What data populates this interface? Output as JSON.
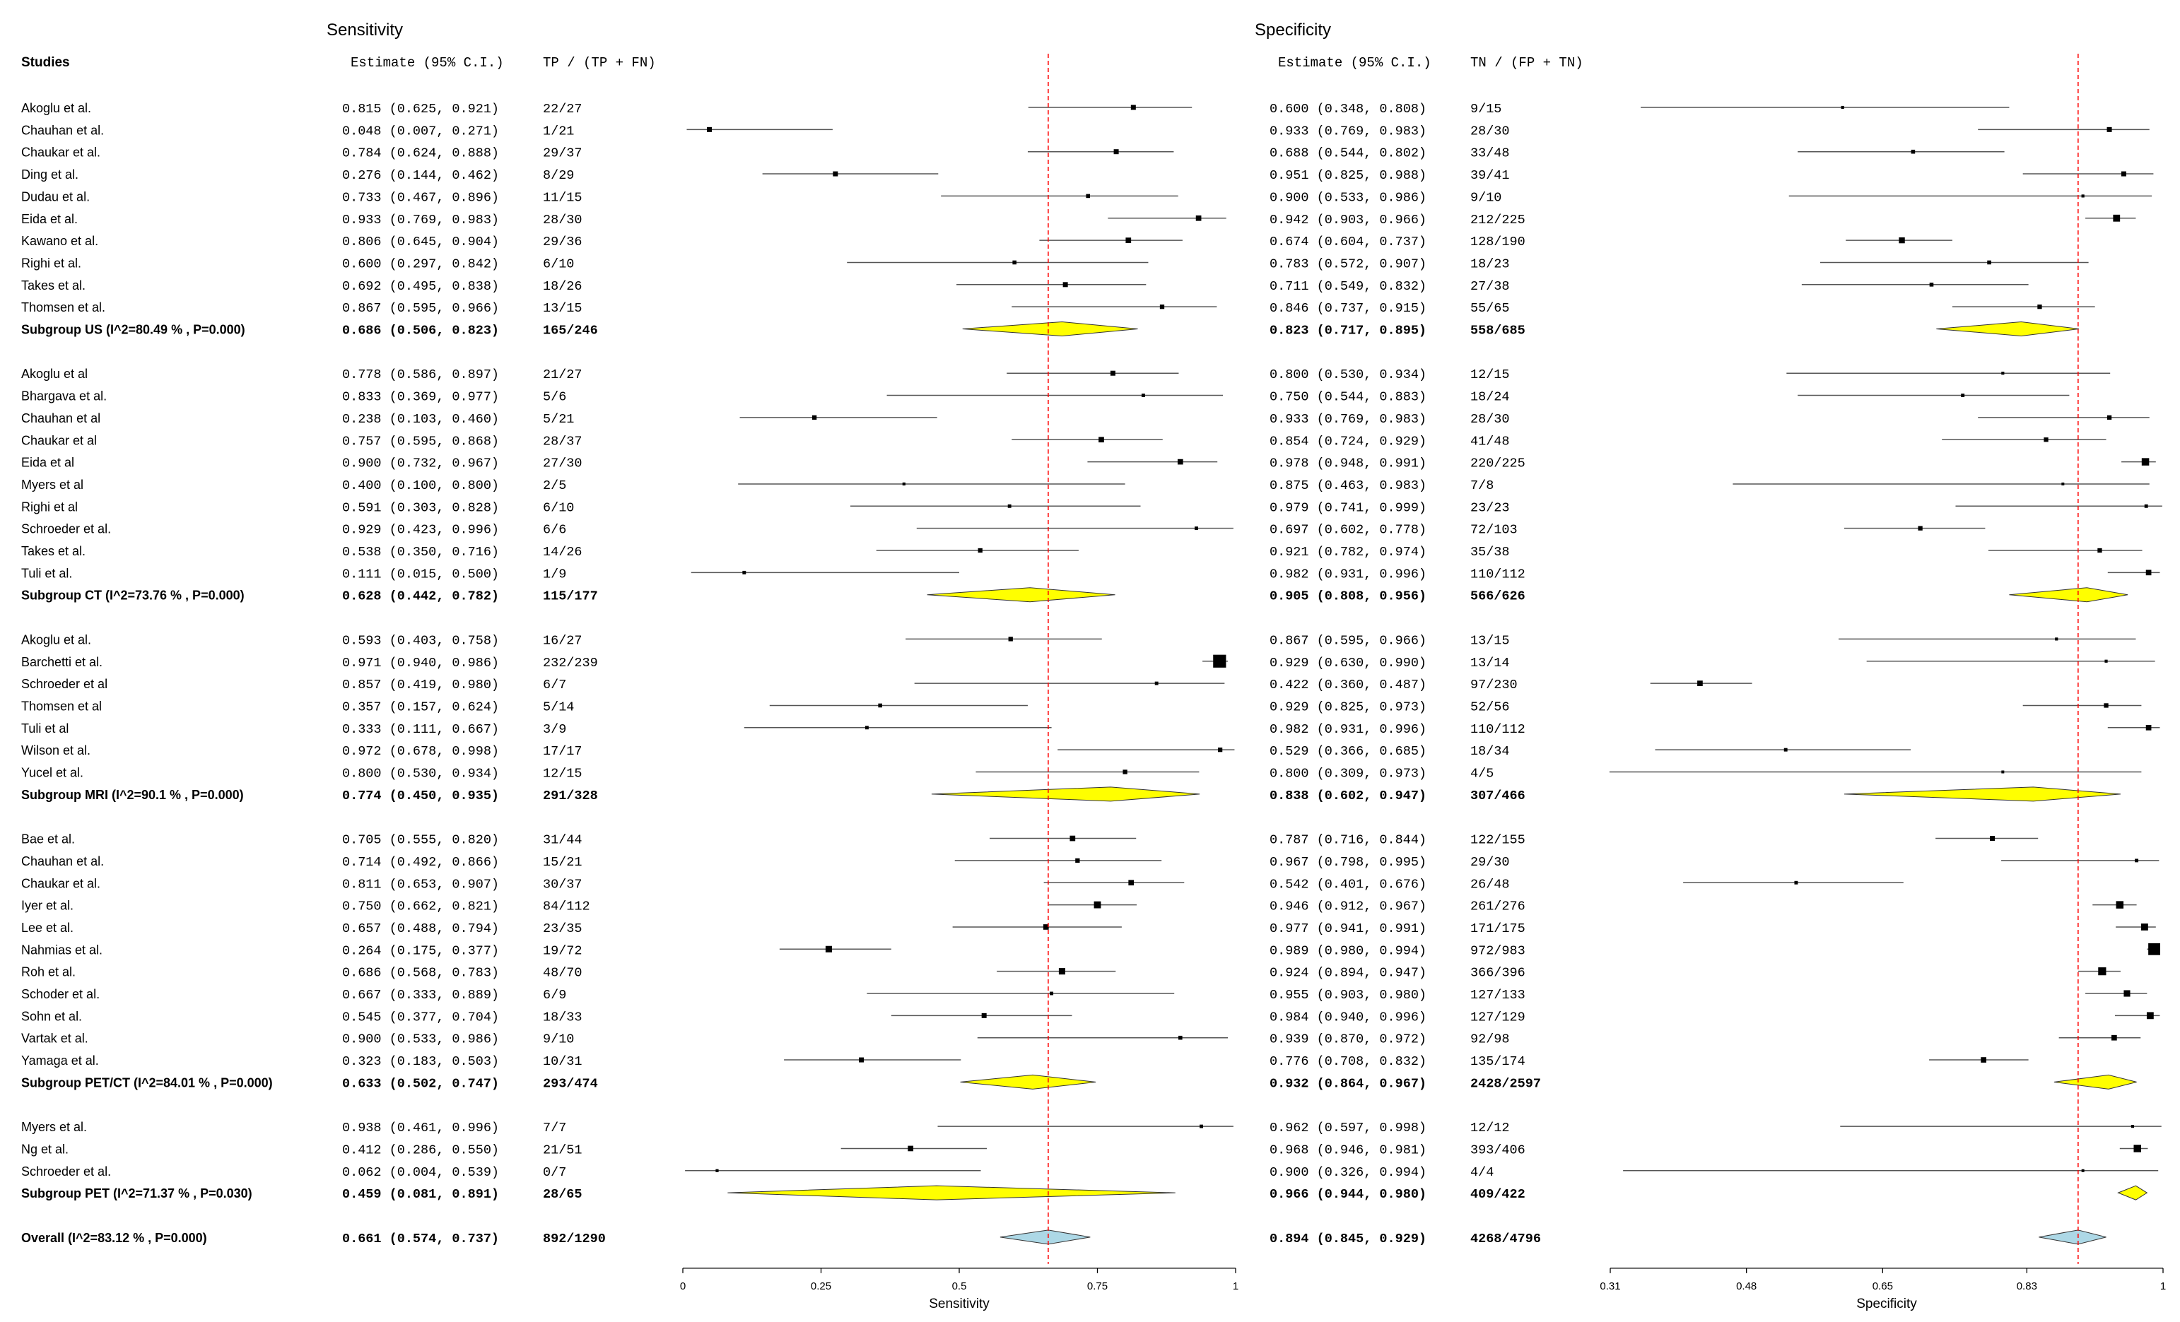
{
  "header": {
    "sens_title": "Sensitivity",
    "spec_title": "Specificity",
    "studies": "Studies",
    "sens_est": "Estimate (95% C.I.)",
    "sens_ratio": "TP / (TP + FN)",
    "spec_est": "Estimate (95% C.I.)",
    "spec_ratio": "TN / (FP + TN)"
  },
  "colors": {
    "diamond": "#ffff00",
    "overall": "#add8e6",
    "refline": "#ff0000",
    "ink": "#000000"
  },
  "chart_data": [
    {
      "type": "forest",
      "title": "Sensitivity",
      "xlabel": "Sensitivity",
      "xlim": [
        0,
        1
      ],
      "ticks": [
        "0",
        "0.25",
        "0.5",
        "0.75",
        "1"
      ],
      "tick_values": [
        0,
        0.25,
        0.5,
        0.75,
        1
      ],
      "reference_line": 0.661
    },
    {
      "type": "forest",
      "title": "Specificity",
      "xlabel": "Specificity",
      "xlim": [
        0.31,
        1
      ],
      "ticks": [
        "0.31",
        "0.48",
        "0.65",
        "0.83",
        "1"
      ],
      "tick_values": [
        0.31,
        0.48,
        0.65,
        0.83,
        1
      ],
      "reference_line": 0.894
    }
  ],
  "rows": [
    {
      "kind": "study",
      "label": "Akoglu et al.",
      "s": [
        0.815,
        0.625,
        0.921
      ],
      "st": "0.815 (0.625, 0.921)",
      "sr": "22/27",
      "p": [
        0.6,
        0.348,
        0.808
      ],
      "pt": "0.600 (0.348, 0.808)",
      "pr": "9/15",
      "sw": 0.5,
      "pw": 0.3
    },
    {
      "kind": "study",
      "label": "Chauhan et al.",
      "s": [
        0.048,
        0.007,
        0.271
      ],
      "st": "0.048 (0.007, 0.271)",
      "sr": "1/21",
      "p": [
        0.933,
        0.769,
        0.983
      ],
      "pt": "0.933 (0.769, 0.983)",
      "pr": "28/30",
      "sw": 0.5,
      "pw": 0.5
    },
    {
      "kind": "study",
      "label": "Chaukar et al.",
      "s": [
        0.784,
        0.624,
        0.888
      ],
      "st": "0.784 (0.624, 0.888)",
      "sr": "29/37",
      "p": [
        0.688,
        0.544,
        0.802
      ],
      "pt": "0.688 (0.544, 0.802)",
      "pr": "33/48",
      "sw": 0.5,
      "pw": 0.4
    },
    {
      "kind": "study",
      "label": "Ding et al.",
      "s": [
        0.276,
        0.144,
        0.462
      ],
      "st": "0.276 (0.144, 0.462)",
      "sr": "8/29",
      "p": [
        0.951,
        0.825,
        0.988
      ],
      "pt": "0.951 (0.825, 0.988)",
      "pr": "39/41",
      "sw": 0.5,
      "pw": 0.5
    },
    {
      "kind": "study",
      "label": "Dudau et al.",
      "s": [
        0.733,
        0.467,
        0.896
      ],
      "st": "0.733 (0.467, 0.896)",
      "sr": "11/15",
      "p": [
        0.9,
        0.533,
        0.986
      ],
      "pt": "0.900 (0.533, 0.986)",
      "pr": "9/10",
      "sw": 0.4,
      "pw": 0.3
    },
    {
      "kind": "study",
      "label": "Eida et al.",
      "s": [
        0.933,
        0.769,
        0.983
      ],
      "st": "0.933 (0.769, 0.983)",
      "sr": "28/30",
      "p": [
        0.942,
        0.903,
        0.966
      ],
      "pt": "0.942 (0.903, 0.966)",
      "pr": "212/225",
      "sw": 0.55,
      "pw": 0.7
    },
    {
      "kind": "study",
      "label": "Kawano et al.",
      "s": [
        0.806,
        0.645,
        0.904
      ],
      "st": "0.806 (0.645, 0.904)",
      "sr": "29/36",
      "p": [
        0.674,
        0.604,
        0.737
      ],
      "pt": "0.674 (0.604, 0.737)",
      "pr": "128/190",
      "sw": 0.55,
      "pw": 0.6
    },
    {
      "kind": "study",
      "label": "Righi et al.",
      "s": [
        0.6,
        0.297,
        0.842
      ],
      "st": "0.600 (0.297, 0.842)",
      "sr": "6/10",
      "p": [
        0.783,
        0.572,
        0.907
      ],
      "pt": "0.783 (0.572, 0.907)",
      "pr": "18/23",
      "sw": 0.4,
      "pw": 0.4
    },
    {
      "kind": "study",
      "label": "Takes et al.",
      "s": [
        0.692,
        0.495,
        0.838
      ],
      "st": "0.692 (0.495, 0.838)",
      "sr": "18/26",
      "p": [
        0.711,
        0.549,
        0.832
      ],
      "pt": "0.711 (0.549, 0.832)",
      "pr": "27/38",
      "sw": 0.5,
      "pw": 0.4
    },
    {
      "kind": "study",
      "label": "Thomsen et al.",
      "s": [
        0.867,
        0.595,
        0.966
      ],
      "st": "0.867 (0.595, 0.966)",
      "sr": "13/15",
      "p": [
        0.846,
        0.737,
        0.915
      ],
      "pt": "0.846 (0.737, 0.915)",
      "pr": "55/65",
      "sw": 0.45,
      "pw": 0.45
    },
    {
      "kind": "subgroup",
      "label": "Subgroup US (I^2=80.49 % , P=0.000)",
      "s": [
        0.686,
        0.506,
        0.823
      ],
      "st": "0.686 (0.506, 0.823)",
      "sr": "165/246",
      "p": [
        0.823,
        0.717,
        0.895
      ],
      "pt": "0.823 (0.717, 0.895)",
      "pr": "558/685"
    },
    {
      "kind": "gap"
    },
    {
      "kind": "study",
      "label": "Akoglu et al",
      "s": [
        0.778,
        0.586,
        0.897
      ],
      "st": "0.778 (0.586, 0.897)",
      "sr": "21/27",
      "p": [
        0.8,
        0.53,
        0.934
      ],
      "pt": "0.800 (0.530, 0.934)",
      "pr": "12/15",
      "sw": 0.5,
      "pw": 0.3
    },
    {
      "kind": "study",
      "label": "Bhargava et al.",
      "s": [
        0.833,
        0.369,
        0.977
      ],
      "st": "0.833 (0.369, 0.977)",
      "sr": "5/6",
      "p": [
        0.75,
        0.544,
        0.883
      ],
      "pt": "0.750 (0.544, 0.883)",
      "pr": "18/24",
      "sw": 0.35,
      "pw": 0.35
    },
    {
      "kind": "study",
      "label": "Chauhan et al",
      "s": [
        0.238,
        0.103,
        0.46
      ],
      "st": "0.238 (0.103, 0.460)",
      "sr": "5/21",
      "p": [
        0.933,
        0.769,
        0.983
      ],
      "pt": "0.933 (0.769, 0.983)",
      "pr": "28/30",
      "sw": 0.45,
      "pw": 0.45
    },
    {
      "kind": "study",
      "label": "Chaukar et al",
      "s": [
        0.757,
        0.595,
        0.868
      ],
      "st": "0.757 (0.595, 0.868)",
      "sr": "28/37",
      "p": [
        0.854,
        0.724,
        0.929
      ],
      "pt": "0.854 (0.724, 0.929)",
      "pr": "41/48",
      "sw": 0.55,
      "pw": 0.45
    },
    {
      "kind": "study",
      "label": "Eida et al",
      "s": [
        0.9,
        0.732,
        0.967
      ],
      "st": "0.900 (0.732, 0.967)",
      "sr": "27/30",
      "p": [
        0.978,
        0.948,
        0.991
      ],
      "pt": "0.978 (0.948, 0.991)",
      "pr": "220/225",
      "sw": 0.55,
      "pw": 0.75
    },
    {
      "kind": "study",
      "label": "Myers et al",
      "s": [
        0.4,
        0.1,
        0.8
      ],
      "st": "0.400 (0.100, 0.800)",
      "sr": "2/5",
      "p": [
        0.875,
        0.463,
        0.983
      ],
      "pt": "0.875 (0.463, 0.983)",
      "pr": "7/8",
      "sw": 0.3,
      "pw": 0.25
    },
    {
      "kind": "study",
      "label": "Righi et al",
      "s": [
        0.591,
        0.303,
        0.828
      ],
      "st": "0.591 (0.303, 0.828)",
      "sr": "6/10",
      "p": [
        0.979,
        0.741,
        0.999
      ],
      "pt": "0.979 (0.741, 0.999)",
      "pr": "23/23",
      "sw": 0.35,
      "pw": 0.35
    },
    {
      "kind": "study",
      "label": "Schroeder et al.",
      "s": [
        0.929,
        0.423,
        0.996
      ],
      "st": "0.929 (0.423, 0.996)",
      "sr": "6/6",
      "p": [
        0.697,
        0.602,
        0.778
      ],
      "pt": "0.697 (0.602, 0.778)",
      "pr": "72/103",
      "sw": 0.35,
      "pw": 0.45
    },
    {
      "kind": "study",
      "label": "Takes et al.",
      "s": [
        0.538,
        0.35,
        0.716
      ],
      "st": "0.538 (0.350, 0.716)",
      "sr": "14/26",
      "p": [
        0.921,
        0.782,
        0.974
      ],
      "pt": "0.921 (0.782, 0.974)",
      "pr": "35/38",
      "sw": 0.45,
      "pw": 0.45
    },
    {
      "kind": "study",
      "label": "Tuli et al.",
      "s": [
        0.111,
        0.015,
        0.5
      ],
      "st": "0.111 (0.015, 0.500)",
      "sr": "1/9",
      "p": [
        0.982,
        0.931,
        0.996
      ],
      "pt": "0.982 (0.931, 0.996)",
      "pr": "110/112",
      "sw": 0.35,
      "pw": 0.55
    },
    {
      "kind": "subgroup",
      "label": "Subgroup CT (I^2=73.76 % , P=0.000)",
      "s": [
        0.628,
        0.442,
        0.782
      ],
      "st": "0.628 (0.442, 0.782)",
      "sr": "115/177",
      "p": [
        0.905,
        0.808,
        0.956
      ],
      "pt": "0.905 (0.808, 0.956)",
      "pr": "566/626"
    },
    {
      "kind": "gap"
    },
    {
      "kind": "study",
      "label": "Akoglu et al.",
      "s": [
        0.593,
        0.403,
        0.758
      ],
      "st": "0.593 (0.403, 0.758)",
      "sr": "16/27",
      "p": [
        0.867,
        0.595,
        0.966
      ],
      "pt": "0.867 (0.595, 0.966)",
      "pr": "13/15",
      "sw": 0.45,
      "pw": 0.3
    },
    {
      "kind": "study",
      "label": "Barchetti et al.",
      "s": [
        0.971,
        0.94,
        0.986
      ],
      "st": "0.971 (0.940, 0.986)",
      "sr": "232/239",
      "p": [
        0.929,
        0.63,
        0.99
      ],
      "pt": "0.929 (0.630, 0.990)",
      "pr": "13/14",
      "sw": 1.3,
      "pw": 0.3
    },
    {
      "kind": "study",
      "label": "Schroeder et al",
      "s": [
        0.857,
        0.419,
        0.98
      ],
      "st": "0.857 (0.419, 0.980)",
      "sr": "6/7",
      "p": [
        0.422,
        0.36,
        0.487
      ],
      "pt": "0.422 (0.360, 0.487)",
      "pr": "97/230",
      "sw": 0.35,
      "pw": 0.55
    },
    {
      "kind": "study",
      "label": "Thomsen et al",
      "s": [
        0.357,
        0.157,
        0.624
      ],
      "st": "0.357 (0.157, 0.624)",
      "sr": "5/14",
      "p": [
        0.929,
        0.825,
        0.973
      ],
      "pt": "0.929 (0.825, 0.973)",
      "pr": "52/56",
      "sw": 0.4,
      "pw": 0.45
    },
    {
      "kind": "study",
      "label": "Tuli et al",
      "s": [
        0.333,
        0.111,
        0.667
      ],
      "st": "0.333 (0.111, 0.667)",
      "sr": "3/9",
      "p": [
        0.982,
        0.931,
        0.996
      ],
      "pt": "0.982 (0.931, 0.996)",
      "pr": "110/112",
      "sw": 0.35,
      "pw": 0.55
    },
    {
      "kind": "study",
      "label": "Wilson et al.",
      "s": [
        0.972,
        0.678,
        0.998
      ],
      "st": "0.972 (0.678, 0.998)",
      "sr": "17/17",
      "p": [
        0.529,
        0.366,
        0.685
      ],
      "pt": "0.529 (0.366, 0.685)",
      "pr": "18/34",
      "sw": 0.45,
      "pw": 0.35
    },
    {
      "kind": "study",
      "label": "Yucel et al.",
      "s": [
        0.8,
        0.53,
        0.934
      ],
      "st": "0.800 (0.530, 0.934)",
      "sr": "12/15",
      "p": [
        0.8,
        0.309,
        0.973
      ],
      "pt": "0.800 (0.309, 0.973)",
      "pr": "4/5",
      "sw": 0.45,
      "pw": 0.25
    },
    {
      "kind": "subgroup",
      "label": "Subgroup MRI  (I^2=90.1 % , P=0.000)",
      "s": [
        0.774,
        0.45,
        0.935
      ],
      "st": "0.774 (0.450, 0.935)",
      "sr": "291/328",
      "p": [
        0.838,
        0.602,
        0.947
      ],
      "pt": "0.838 (0.602, 0.947)",
      "pr": "307/466"
    },
    {
      "kind": "gap"
    },
    {
      "kind": "study",
      "label": "Bae et al.",
      "s": [
        0.705,
        0.555,
        0.82
      ],
      "st": "0.705 (0.555, 0.820)",
      "sr": "31/44",
      "p": [
        0.787,
        0.716,
        0.844
      ],
      "pt": "0.787 (0.716, 0.844)",
      "pr": "122/155",
      "sw": 0.55,
      "pw": 0.5
    },
    {
      "kind": "study",
      "label": "Chauhan et al.",
      "s": [
        0.714,
        0.492,
        0.866
      ],
      "st": "0.714 (0.492, 0.866)",
      "sr": "15/21",
      "p": [
        0.967,
        0.798,
        0.995
      ],
      "pt": "0.967 (0.798, 0.995)",
      "pr": "29/30",
      "sw": 0.45,
      "pw": 0.35
    },
    {
      "kind": "study",
      "label": "Chaukar et al.",
      "s": [
        0.811,
        0.653,
        0.907
      ],
      "st": "0.811 (0.653, 0.907)",
      "sr": "30/37",
      "p": [
        0.542,
        0.401,
        0.676
      ],
      "pt": "0.542 (0.401, 0.676)",
      "pr": "26/48",
      "sw": 0.55,
      "pw": 0.35
    },
    {
      "kind": "study",
      "label": "Iyer et al.",
      "s": [
        0.75,
        0.662,
        0.821
      ],
      "st": "0.750 (0.662, 0.821)",
      "sr": "84/112",
      "p": [
        0.946,
        0.912,
        0.967
      ],
      "pt": "0.946 (0.912, 0.967)",
      "pr": "261/276",
      "sw": 0.7,
      "pw": 0.75
    },
    {
      "kind": "study",
      "label": "Lee et al.",
      "s": [
        0.657,
        0.488,
        0.794
      ],
      "st": "0.657 (0.488, 0.794)",
      "sr": "23/35",
      "p": [
        0.977,
        0.941,
        0.991
      ],
      "pt": "0.977 (0.941, 0.991)",
      "pr": "171/175",
      "sw": 0.55,
      "pw": 0.7
    },
    {
      "kind": "study",
      "label": "Nahmias et al.",
      "s": [
        0.264,
        0.175,
        0.377
      ],
      "st": "0.264 (0.175, 0.377)",
      "sr": "19/72",
      "p": [
        0.989,
        0.98,
        0.994
      ],
      "pt": "0.989 (0.980, 0.994)",
      "pr": "972/983",
      "sw": 0.65,
      "pw": 1.2
    },
    {
      "kind": "study",
      "label": "Roh et al.",
      "s": [
        0.686,
        0.568,
        0.783
      ],
      "st": "0.686 (0.568, 0.783)",
      "sr": "48/70",
      "p": [
        0.924,
        0.894,
        0.947
      ],
      "pt": "0.924 (0.894, 0.947)",
      "pr": "366/396",
      "sw": 0.65,
      "pw": 0.8
    },
    {
      "kind": "study",
      "label": "Schoder et al.",
      "s": [
        0.667,
        0.333,
        0.889
      ],
      "st": "0.667 (0.333, 0.889)",
      "sr": "6/9",
      "p": [
        0.955,
        0.903,
        0.98
      ],
      "pt": "0.955 (0.903, 0.980)",
      "pr": "127/133",
      "sw": 0.35,
      "pw": 0.65
    },
    {
      "kind": "study",
      "label": "Sohn et al.",
      "s": [
        0.545,
        0.377,
        0.704
      ],
      "st": "0.545 (0.377, 0.704)",
      "sr": "18/33",
      "p": [
        0.984,
        0.94,
        0.996
      ],
      "pt": "0.984 (0.940, 0.996)",
      "pr": "127/129",
      "sw": 0.5,
      "pw": 0.7
    },
    {
      "kind": "study",
      "label": "Vartak et al.",
      "s": [
        0.9,
        0.533,
        0.986
      ],
      "st": "0.900 (0.533, 0.986)",
      "sr": "9/10",
      "p": [
        0.939,
        0.87,
        0.972
      ],
      "pt": "0.939 (0.870, 0.972)",
      "pr": "92/98",
      "sw": 0.4,
      "pw": 0.55
    },
    {
      "kind": "study",
      "label": "Yamaga et al.",
      "s": [
        0.323,
        0.183,
        0.503
      ],
      "st": "0.323 (0.183, 0.503)",
      "sr": "10/31",
      "p": [
        0.776,
        0.708,
        0.832
      ],
      "pt": "0.776 (0.708, 0.832)",
      "pr": "135/174",
      "sw": 0.5,
      "pw": 0.55
    },
    {
      "kind": "subgroup",
      "label": "Subgroup PET/CT (I^2=84.01 % , P=0.000)",
      "s": [
        0.633,
        0.502,
        0.747
      ],
      "st": "0.633 (0.502, 0.747)",
      "sr": "293/474",
      "p": [
        0.932,
        0.864,
        0.967
      ],
      "pt": "0.932 (0.864, 0.967)",
      "pr": "2428/2597"
    },
    {
      "kind": "gap"
    },
    {
      "kind": "study",
      "label": "Myers et al.",
      "s": [
        0.938,
        0.461,
        0.996
      ],
      "st": "0.938 (0.461, 0.996)",
      "sr": "7/7",
      "p": [
        0.962,
        0.597,
        0.998
      ],
      "pt": "0.962 (0.597, 0.998)",
      "pr": "12/12",
      "sw": 0.35,
      "pw": 0.3
    },
    {
      "kind": "study",
      "label": "Ng et al.",
      "s": [
        0.412,
        0.286,
        0.55
      ],
      "st": "0.412 (0.286, 0.550)",
      "sr": "21/51",
      "p": [
        0.968,
        0.946,
        0.981
      ],
      "pt": "0.968 (0.946, 0.981)",
      "pr": "393/406",
      "sw": 0.55,
      "pw": 0.75
    },
    {
      "kind": "study",
      "label": "Schroeder et al.",
      "s": [
        0.062,
        0.004,
        0.539
      ],
      "st": "0.062 (0.004, 0.539)",
      "sr": "0/7",
      "p": [
        0.9,
        0.326,
        0.994
      ],
      "pt": "0.900 (0.326, 0.994)",
      "pr": "4/4",
      "sw": 0.3,
      "pw": 0.2
    },
    {
      "kind": "subgroup",
      "label": "Subgroup PET  (I^2=71.37 % , P=0.030)",
      "s": [
        0.459,
        0.081,
        0.891
      ],
      "st": "0.459 (0.081, 0.891)",
      "sr": "28/65",
      "p": [
        0.966,
        0.944,
        0.98
      ],
      "pt": "0.966 (0.944, 0.980)",
      "pr": "409/422"
    },
    {
      "kind": "gap"
    },
    {
      "kind": "overall",
      "label": "Overall (I^2=83.12 % , P=0.000)",
      "s": [
        0.661,
        0.574,
        0.737
      ],
      "st": "0.661 (0.574, 0.737)",
      "sr": "892/1290",
      "p": [
        0.894,
        0.845,
        0.929
      ],
      "pt": "0.894 (0.845, 0.929)",
      "pr": "4268/4796"
    }
  ]
}
